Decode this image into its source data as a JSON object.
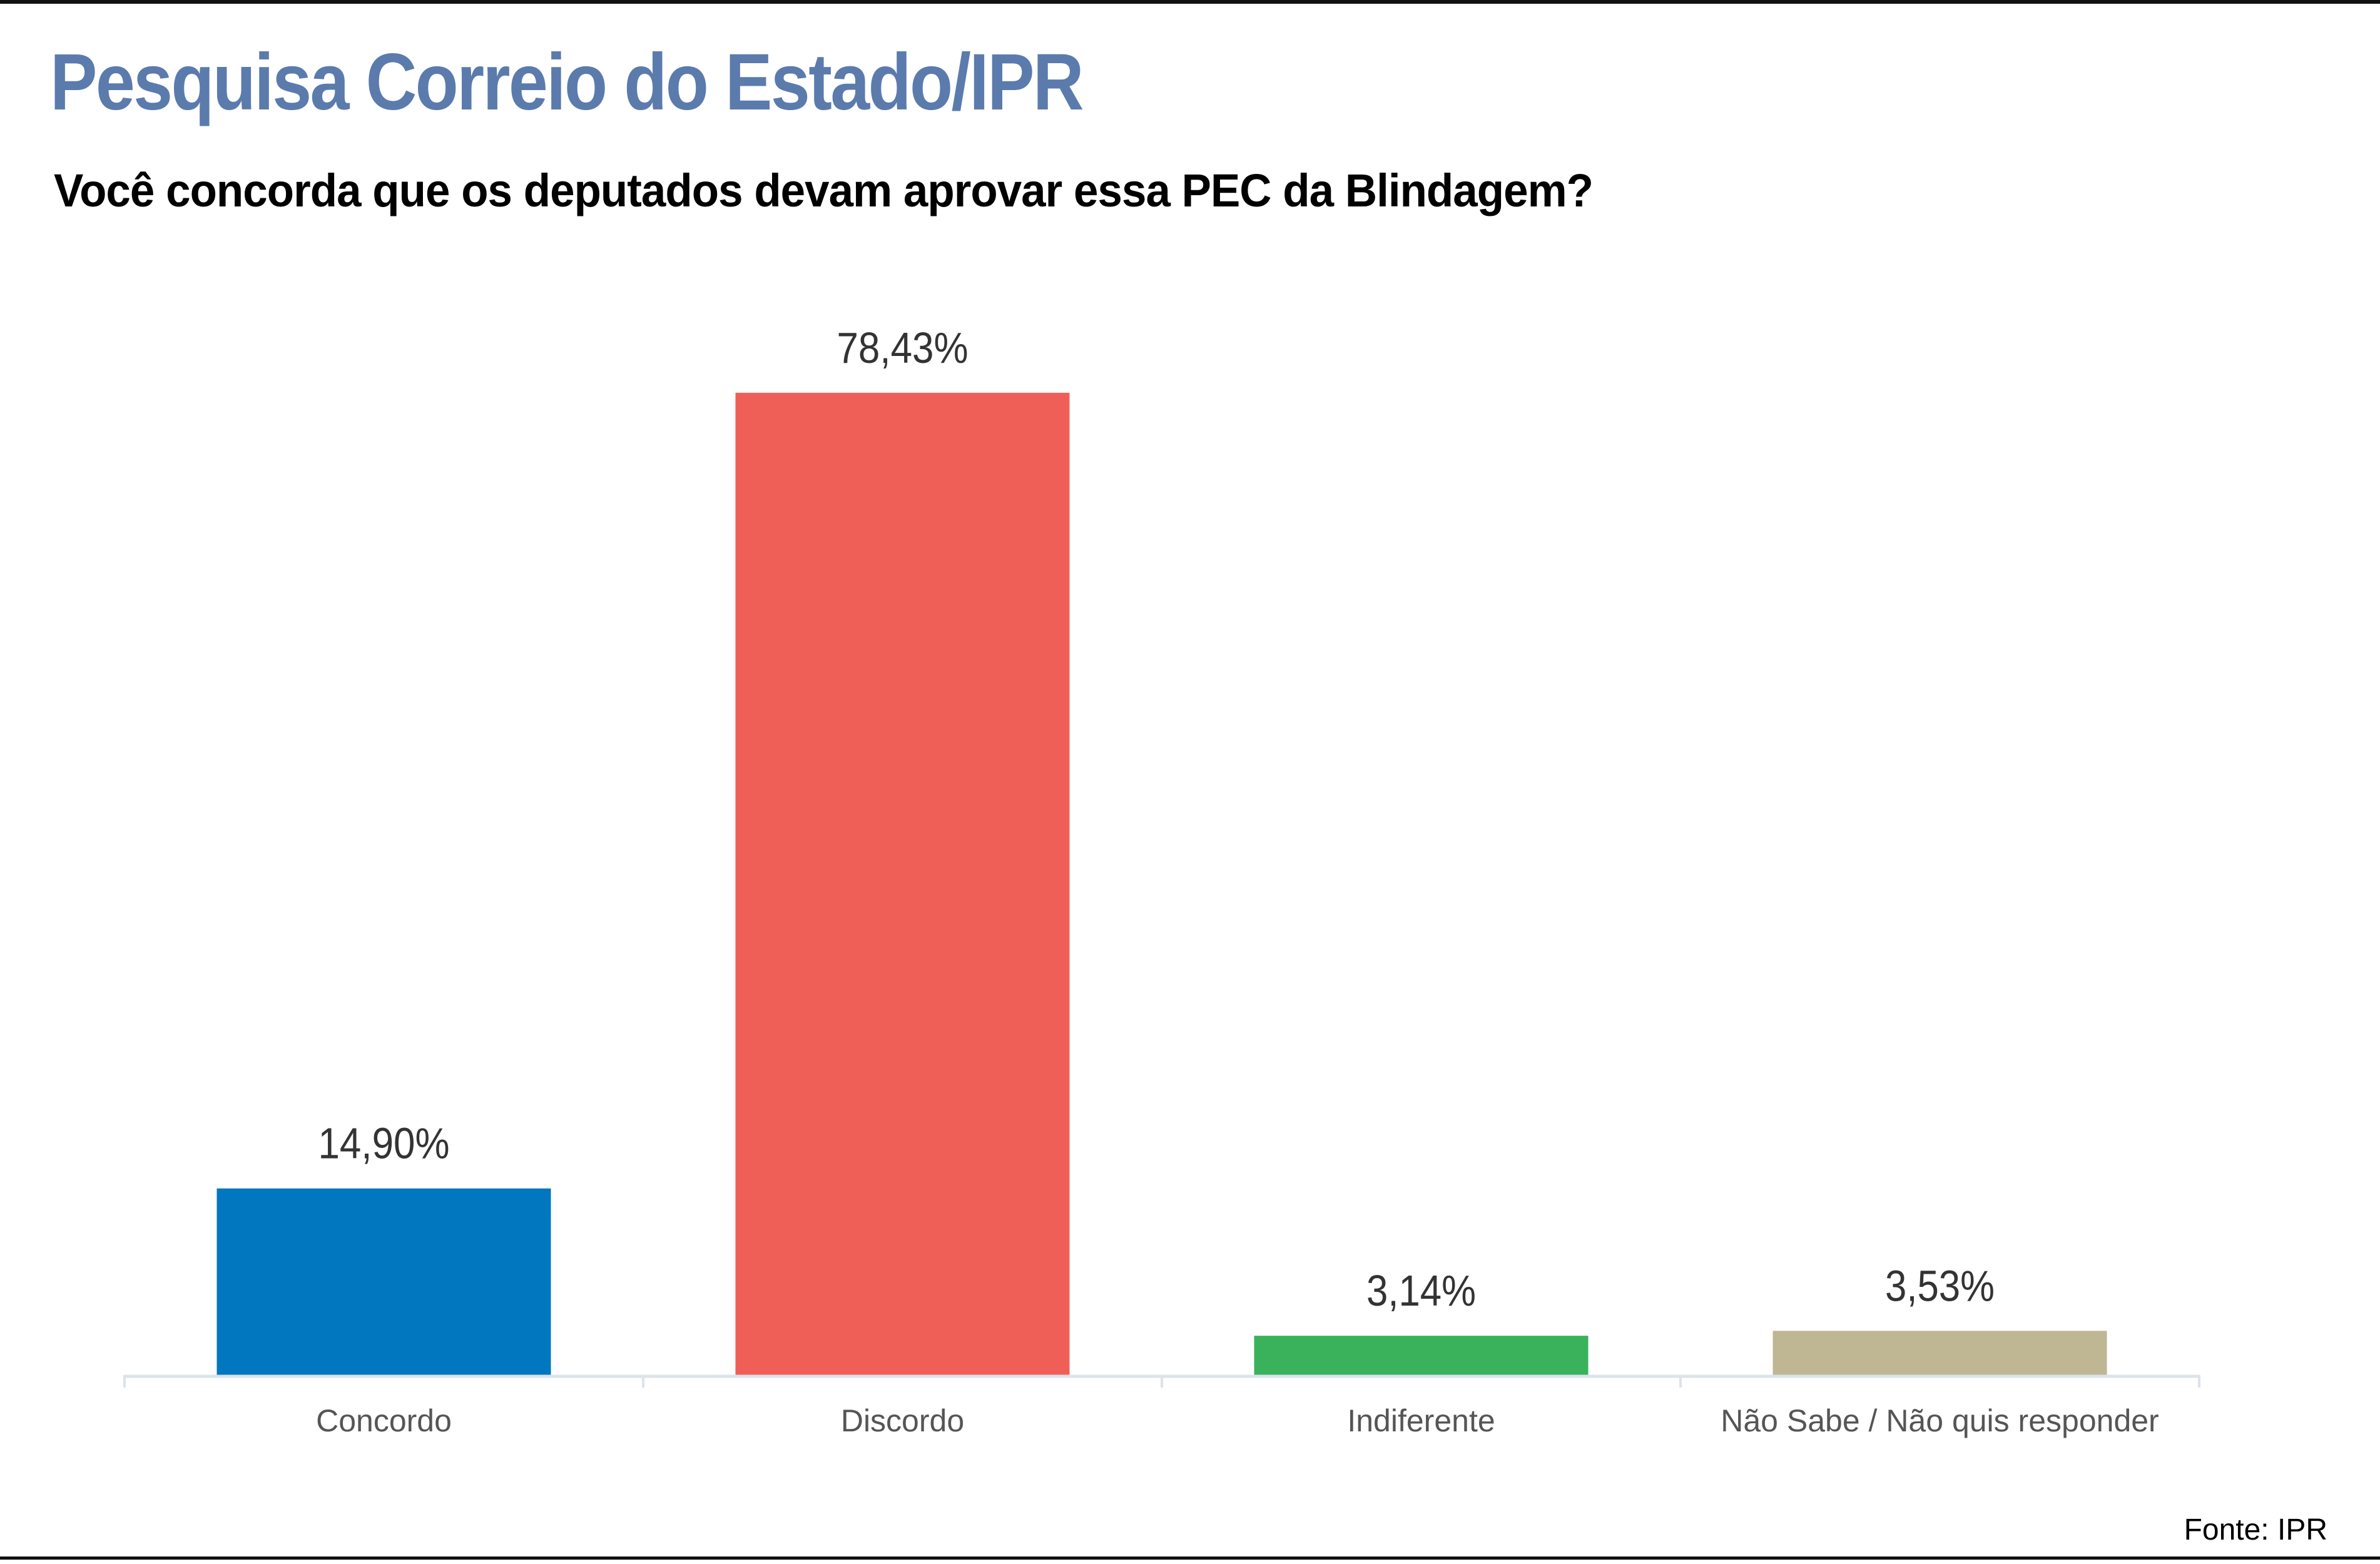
{
  "header": {
    "title": "Pesquisa  Correio do Estado/IPR",
    "subtitle": "Você concorda que os deputados devam aprovar essa PEC da Blindagem?"
  },
  "footer": {
    "source": "Fonte: IPR"
  },
  "chart_data": {
    "type": "bar",
    "title": "Você concorda que os deputados devam aprovar essa PEC da Blindagem?",
    "categories": [
      "Concordo",
      "Discordo",
      "Indiferente",
      "Não Sabe / Não quis responder"
    ],
    "values": [
      14.9,
      78.43,
      3.14,
      3.53
    ],
    "data_labels": [
      "14,90%",
      "78,43%",
      "3,14%",
      "3,53%"
    ],
    "colors": [
      "#0077be",
      "#f05f57",
      "#3ab25b",
      "#bfb693"
    ],
    "unit": "%",
    "ylim": [
      0,
      100
    ],
    "grid": false,
    "legend": "none",
    "xlabel": "",
    "ylabel": ""
  }
}
